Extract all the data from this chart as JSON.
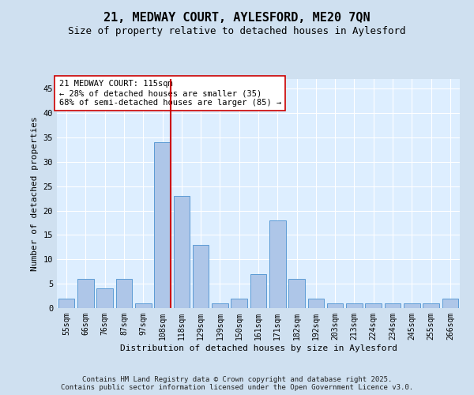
{
  "title": "21, MEDWAY COURT, AYLESFORD, ME20 7QN",
  "subtitle": "Size of property relative to detached houses in Aylesford",
  "xlabel": "Distribution of detached houses by size in Aylesford",
  "ylabel": "Number of detached properties",
  "categories": [
    "55sqm",
    "66sqm",
    "76sqm",
    "87sqm",
    "97sqm",
    "108sqm",
    "118sqm",
    "129sqm",
    "139sqm",
    "150sqm",
    "161sqm",
    "171sqm",
    "182sqm",
    "192sqm",
    "203sqm",
    "213sqm",
    "224sqm",
    "234sqm",
    "245sqm",
    "255sqm",
    "266sqm"
  ],
  "values": [
    2,
    6,
    4,
    6,
    1,
    34,
    23,
    13,
    1,
    2,
    7,
    18,
    6,
    2,
    1,
    1,
    1,
    1,
    1,
    1,
    2
  ],
  "bar_color": "#aec6e8",
  "bar_edge_color": "#5b9bd5",
  "vline_color": "#cc0000",
  "annotation_text": "21 MEDWAY COURT: 115sqm\n← 28% of detached houses are smaller (35)\n68% of semi-detached houses are larger (85) →",
  "annotation_box_color": "#ffffff",
  "annotation_box_edge_color": "#cc0000",
  "ylim": [
    0,
    47
  ],
  "yticks": [
    0,
    5,
    10,
    15,
    20,
    25,
    30,
    35,
    40,
    45
  ],
  "background_color": "#cfe0f0",
  "plot_bg_color": "#ddeeff",
  "footer_text": "Contains HM Land Registry data © Crown copyright and database right 2025.\nContains public sector information licensed under the Open Government Licence v3.0.",
  "title_fontsize": 11,
  "subtitle_fontsize": 9,
  "annotation_fontsize": 7.5,
  "footer_fontsize": 6.5,
  "ylabel_fontsize": 8,
  "xlabel_fontsize": 8,
  "ytick_fontsize": 7.5,
  "xtick_fontsize": 7
}
